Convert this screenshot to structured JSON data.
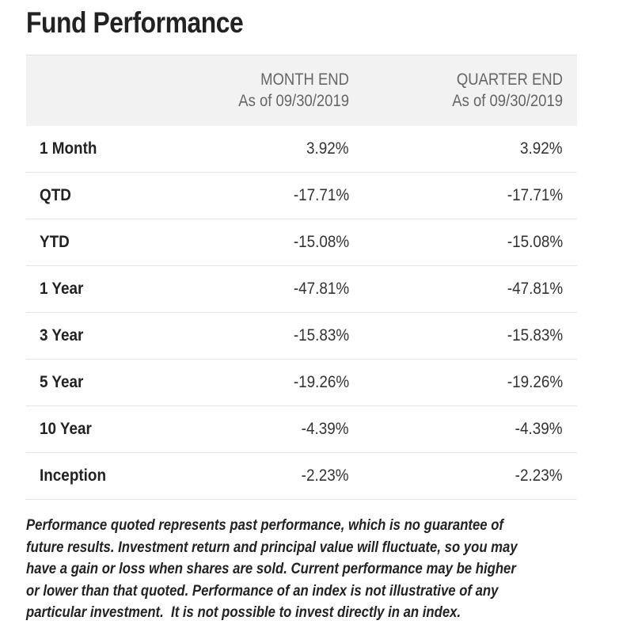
{
  "page": {
    "title": "Fund Performance"
  },
  "table": {
    "columns": [
      {
        "line1": "MONTH END",
        "line2": "As of 09/30/2019"
      },
      {
        "line1": "QUARTER END",
        "line2": "As of 09/30/2019"
      }
    ],
    "rows": [
      {
        "label": "1 Month",
        "month_end": "3.92%",
        "quarter_end": "3.92%"
      },
      {
        "label": "QTD",
        "month_end": "-17.71%",
        "quarter_end": "-17.71%"
      },
      {
        "label": "YTD",
        "month_end": "-15.08%",
        "quarter_end": "-15.08%"
      },
      {
        "label": "1 Year",
        "month_end": "-47.81%",
        "quarter_end": "-47.81%"
      },
      {
        "label": "3 Year",
        "month_end": "-15.83%",
        "quarter_end": "-15.83%"
      },
      {
        "label": "5 Year",
        "month_end": "-19.26%",
        "quarter_end": "-19.26%"
      },
      {
        "label": "10 Year",
        "month_end": "-4.39%",
        "quarter_end": "-4.39%"
      },
      {
        "label": "Inception",
        "month_end": "-2.23%",
        "quarter_end": "-2.23%"
      }
    ]
  },
  "disclaimer": {
    "lines": [
      "Performance quoted represents past performance, which is no guarantee of",
      "future results. Investment return and principal value will fluctuate, so you may",
      "have a gain or loss when shares are sold. Current performance may be higher",
      "or lower than that quoted. Performance of an index is not illustrative of any",
      "particular investment.  It is not possible to invest directly in an index."
    ]
  }
}
